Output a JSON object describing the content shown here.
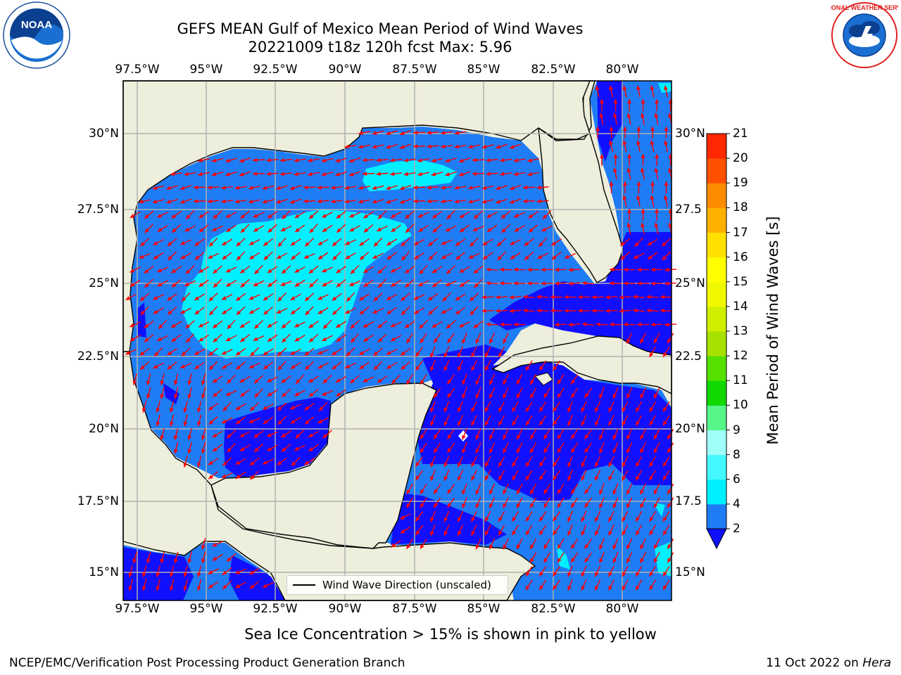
{
  "title_line1": "GEFS MEAN Gulf of Mexico Mean Period of Wind Waves",
  "title_line2": "20221009 t18z 120h fcst   Max: 5.96",
  "lon_ticks": [
    "97.5°W",
    "95°W",
    "92.5°W",
    "90°W",
    "87.5°W",
    "85°W",
    "82.5°W",
    "80°W"
  ],
  "lat_ticks_left": [
    "30°N",
    "27.5°N",
    "25°N",
    "22.5°N",
    "20°N",
    "17.5°N",
    "15°N"
  ],
  "lat_ticks_right": [
    "30°N",
    "27.5",
    "25°N",
    "22.5",
    "20°N",
    "17.5",
    "15°N"
  ],
  "legend_label": "Wind Wave Direction (unscaled)",
  "colorbar": {
    "label": "Mean Period of Wind Waves [s]",
    "ticks": [
      "2",
      "4",
      "6",
      "8",
      "9",
      "10",
      "11",
      "12",
      "13",
      "14",
      "15",
      "16",
      "17",
      "18",
      "19",
      "20",
      "21"
    ],
    "colors": [
      "#1e7cf5",
      "#00f0ff",
      "#44f8ff",
      "#a0fff8",
      "#55f58a",
      "#10d800",
      "#55e000",
      "#a8e000",
      "#d0ee00",
      "#f0f800",
      "#ffff00",
      "#ffe000",
      "#ffb000",
      "#ff8c00",
      "#ff5000",
      "#ff2800"
    ],
    "extend_color": "#1010ff"
  },
  "map_colors": {
    "land": "#eeeedc",
    "period_2_4": "#1e7cf5",
    "period_4_6": "#00f0ff",
    "period_lt_2": "#1010ff",
    "arrow": "#ff0000"
  },
  "subtitle": "Sea Ice Concentration > 15% is shown in pink to yellow",
  "footer_left": "NCEP/EMC/Verification Post Processing Product Generation Branch",
  "footer_right_prefix": "11 Oct 2022 on ",
  "footer_right_host": "Hera",
  "logo_left_name": "NOAA",
  "logo_right_name": "NATIONAL WEATHER SERVICE"
}
